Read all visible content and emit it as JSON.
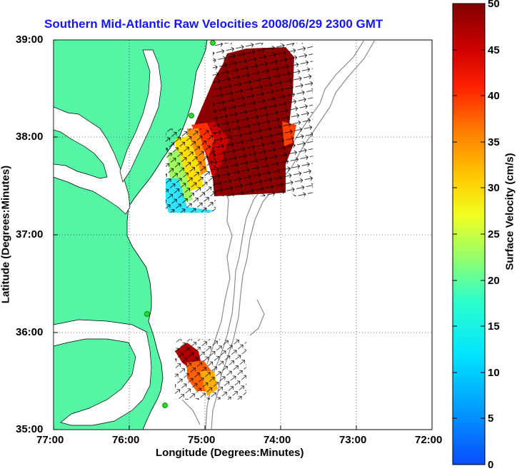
{
  "title": "Southern Mid-Atlantic Raw Velocities 2008/06/29 2300 GMT",
  "xlabel": "Longitude (Degrees:Minutes)",
  "ylabel": "Latitude (Degrees:Minutes)",
  "x_ticks": [
    "77:00",
    "76:00",
    "75:00",
    "74:00",
    "73:00",
    "72:00"
  ],
  "y_ticks": [
    "39:00",
    "38:00",
    "37:00",
    "36:00",
    "35:00"
  ],
  "colorbar": {
    "label": "Surface Velocity (cm/s)",
    "ticks": [
      "50",
      "45",
      "40",
      "35",
      "30",
      "25",
      "20",
      "15",
      "10",
      "5",
      "0"
    ],
    "range": [
      0,
      50
    ],
    "unit": "cm/s"
  },
  "colors": {
    "title": "#1414ff",
    "land": "#55f5a5",
    "bathymetry": "#8c8c8c",
    "stations": "#20e020"
  },
  "map_extent": {
    "lon_range": [
      -77.0,
      -72.0
    ],
    "lat_range": [
      35.0,
      39.0
    ]
  }
}
